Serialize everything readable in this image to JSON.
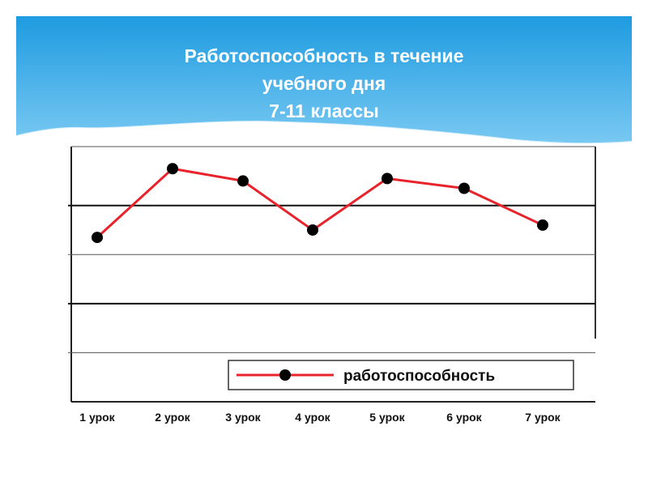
{
  "header": {
    "title_lines": [
      "Работоспособность в течение",
      "учебного дня",
      "7-11 классы"
    ],
    "gradient_top": "#1e9be0",
    "gradient_bottom": "#79c9f2"
  },
  "chart_data": {
    "type": "line",
    "title": "Работоспособность в течение учебного дня 7-11 классы",
    "xlabel": "",
    "ylabel": "",
    "categories": [
      "1 урок",
      "2 урок",
      "3 урок",
      "4 урок",
      "5 урок",
      "6 урок",
      "7 урок"
    ],
    "series": [
      {
        "name": "работоспособность",
        "values": [
          3.35,
          4.75,
          4.5,
          3.5,
          4.55,
          4.35,
          3.6
        ],
        "color": "#e8232b"
      }
    ],
    "ylim": [
      0,
      5.2
    ],
    "gridlines": [
      1,
      2,
      3,
      4
    ],
    "grid": true,
    "legend": "bottom-inside",
    "marker_color": "#000000"
  }
}
